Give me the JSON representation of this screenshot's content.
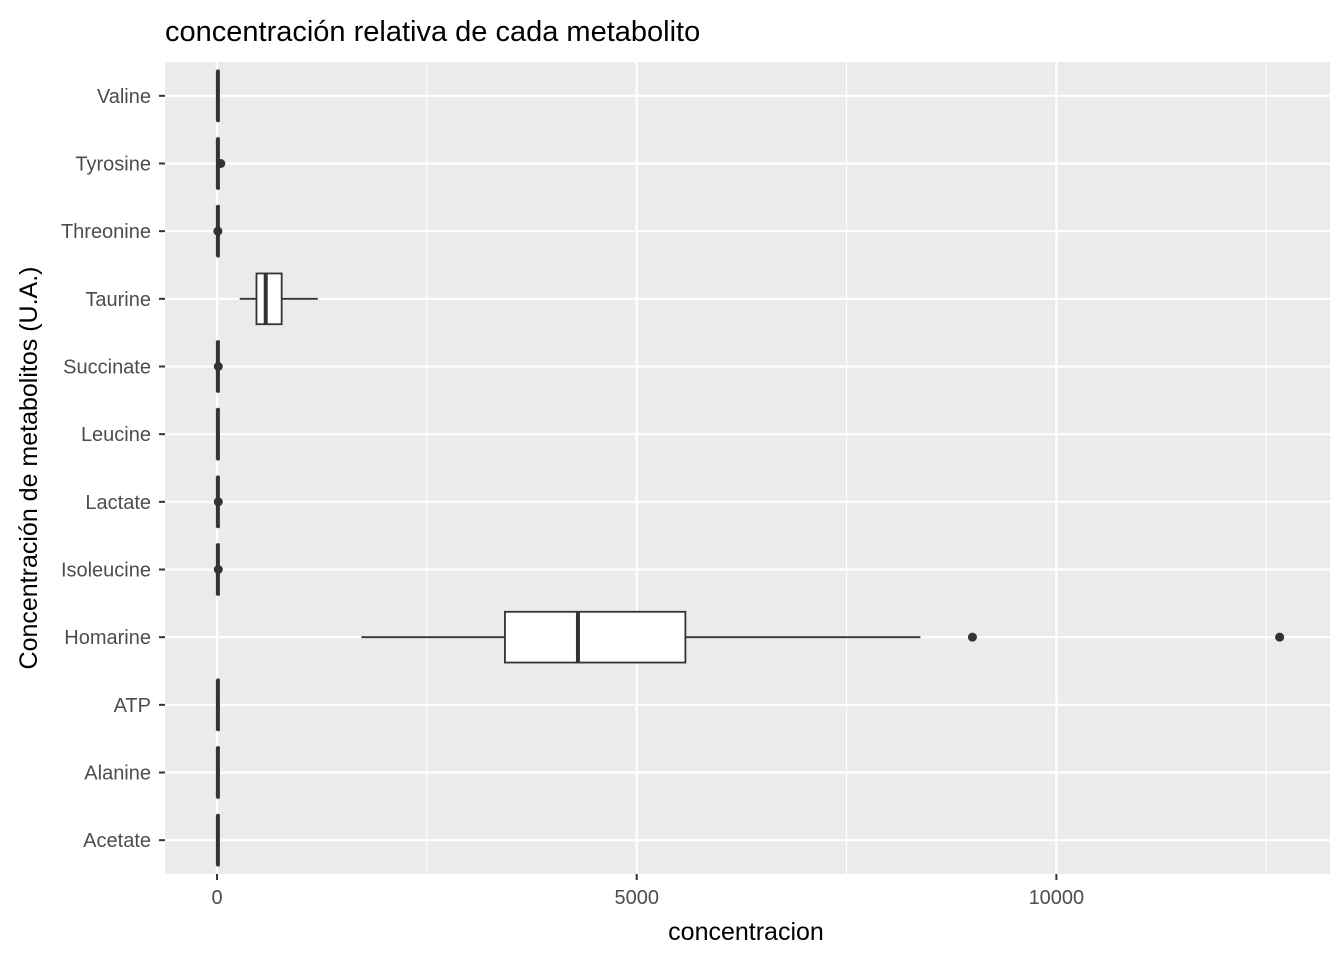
{
  "chart_data": {
    "type": "boxplot",
    "orientation": "horizontal",
    "title": "concentración relativa de cada metabolito",
    "xlabel": "concentracion",
    "ylabel": "Concentración de metabolitos (U.A.)",
    "xlim": [
      -620,
      13260
    ],
    "x_ticks": [
      {
        "value": 0,
        "label": "0"
      },
      {
        "value": 5000,
        "label": "5000"
      },
      {
        "value": 10000,
        "label": "10000"
      }
    ],
    "x_minor_ticks": [
      2500,
      7500,
      12500
    ],
    "grid": true,
    "panel_background": "#ebebeb",
    "grid_color": "#ffffff",
    "box_fill": "#ffffff",
    "line_color": "#333333",
    "categories": [
      "Acetate",
      "Alanine",
      "ATP",
      "Homarine",
      "Isoleucine",
      "Lactate",
      "Leucine",
      "Succinate",
      "Taurine",
      "Threonine",
      "Tyrosine",
      "Valine"
    ],
    "boxes": [
      {
        "name": "Acetate",
        "min": 0,
        "q1": 5,
        "median": 10,
        "q3": 20,
        "max": 35,
        "outliers": []
      },
      {
        "name": "Alanine",
        "min": 0,
        "q1": 5,
        "median": 10,
        "q3": 20,
        "max": 35,
        "outliers": []
      },
      {
        "name": "ATP",
        "min": 0,
        "q1": 5,
        "median": 10,
        "q3": 20,
        "max": 35,
        "outliers": []
      },
      {
        "name": "Homarine",
        "min": 1720,
        "q1": 3430,
        "median": 4300,
        "q3": 5580,
        "max": 8380,
        "outliers": [
          9000,
          12660
        ]
      },
      {
        "name": "Isoleucine",
        "min": 0,
        "q1": 5,
        "median": 10,
        "q3": 20,
        "max": 35,
        "outliers": [
          15
        ]
      },
      {
        "name": "Lactate",
        "min": 0,
        "q1": 5,
        "median": 10,
        "q3": 20,
        "max": 35,
        "outliers": [
          15
        ]
      },
      {
        "name": "Leucine",
        "min": 0,
        "q1": 5,
        "median": 10,
        "q3": 20,
        "max": 35,
        "outliers": []
      },
      {
        "name": "Succinate",
        "min": 0,
        "q1": 5,
        "median": 10,
        "q3": 20,
        "max": 35,
        "outliers": [
          15
        ]
      },
      {
        "name": "Taurine",
        "min": 270,
        "q1": 470,
        "median": 580,
        "q3": 770,
        "max": 1200,
        "outliers": []
      },
      {
        "name": "Threonine",
        "min": 0,
        "q1": 5,
        "median": 10,
        "q3": 20,
        "max": 35,
        "outliers": [
          10
        ]
      },
      {
        "name": "Tyrosine",
        "min": 0,
        "q1": 5,
        "median": 10,
        "q3": 20,
        "max": 35,
        "outliers": [
          45
        ]
      },
      {
        "name": "Valine",
        "min": 0,
        "q1": 5,
        "median": 10,
        "q3": 20,
        "max": 35,
        "outliers": []
      }
    ]
  }
}
